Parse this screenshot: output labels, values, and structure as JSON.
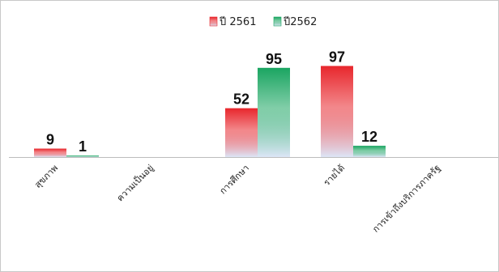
{
  "chart_data": {
    "type": "bar",
    "title": "",
    "xlabel": "",
    "ylabel": "",
    "ylim": [
      0,
      100
    ],
    "grid": false,
    "legend_position": "top",
    "categories": [
      "สุขภาพ",
      "ความเป็นอยู่",
      "การศึกษา",
      "รายได้",
      "การเข้าถึงบริการภาครัฐ"
    ],
    "series": [
      {
        "name": "ปี 2561",
        "color_top": "#e8262c",
        "color_bottom": "#dde6f7",
        "values": [
          9,
          null,
          52,
          97,
          null
        ]
      },
      {
        "name": "ปี2562",
        "color_top": "#1aa561",
        "color_bottom": "#dde6f7",
        "values": [
          1,
          null,
          95,
          12,
          null
        ]
      }
    ]
  }
}
